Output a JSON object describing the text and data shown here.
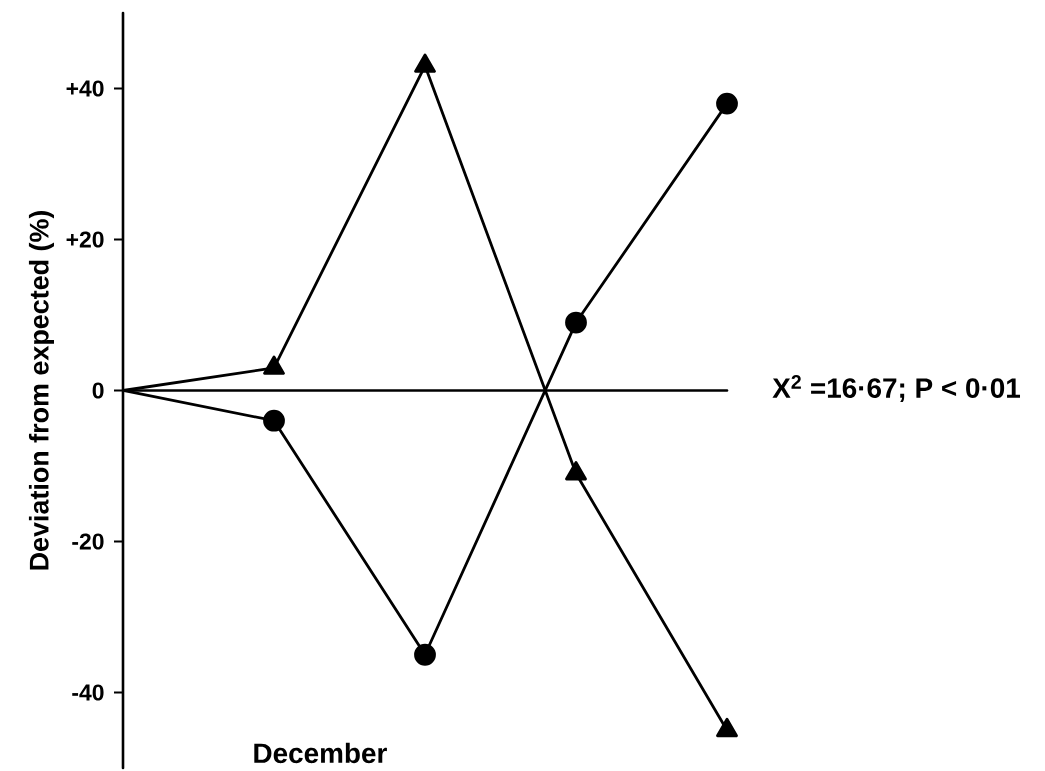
{
  "chart_data": {
    "type": "line",
    "xlabel": "December",
    "ylabel": "Deviation from expected (%)",
    "annotations": [
      "X$^{2}$ =16·67; P < 0·01"
    ],
    "categories": [
      null,
      null,
      null,
      null,
      null
    ],
    "series": [
      {
        "color": "#000000",
        "marker": "triangle",
        "values": [
          0,
          3,
          43,
          -11,
          -45
        ]
      },
      {
        "color": "#000000",
        "marker": "circle",
        "values": [
          0,
          -4,
          -35,
          9,
          38
        ]
      }
    ],
    "ylim": [
      -50,
      50
    ],
    "yticks": [
      -40,
      -20,
      0,
      {
        "value": 20,
        "label": "+20"
      },
      {
        "value": 40,
        "label": "+40"
      }
    ],
    "tick_labels": "y"
  }
}
